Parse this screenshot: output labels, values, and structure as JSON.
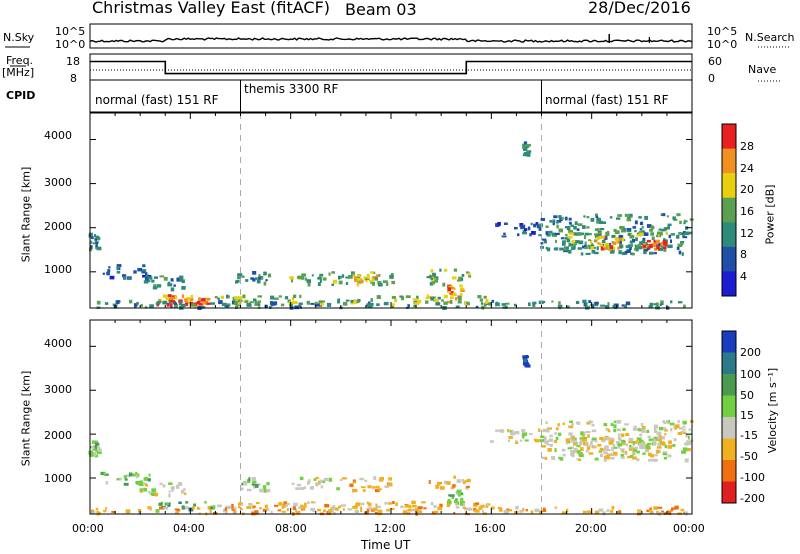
{
  "header": {
    "station": "Christmas Valley East (fitACF)",
    "beam": "Beam 03",
    "date": "28/Dec/2016"
  },
  "aux_panels": {
    "nsky_label": "N.Sky",
    "nsky_ticks": [
      "10^5",
      "10^0"
    ],
    "nsearch_label": "N.Search",
    "nsearch_ticks": [
      "10^5",
      "10^0"
    ],
    "freq_label": [
      "Freq.",
      "[MHz]"
    ],
    "freq_ticks": [
      "18",
      "8"
    ],
    "nave_label": "Nave",
    "nave_ticks": [
      "60",
      "0"
    ],
    "cpid_label": "CPID"
  },
  "cpid_modes": [
    {
      "label": "normal (fast) 151 RF",
      "start": 0,
      "end": 6
    },
    {
      "label": "themis 3300 RF",
      "start": 6,
      "end": 18
    },
    {
      "label": "normal (fast) 151 RF",
      "start": 18,
      "end": 24
    }
  ],
  "chart_data": [
    {
      "type": "line",
      "x": [
        0,
        3,
        3,
        15,
        15,
        24
      ],
      "series": [
        {
          "name": "Freq.",
          "values": [
            15.5,
            15.5,
            10,
            10,
            15.5,
            15.5
          ]
        },
        {
          "name": "N.Sky",
          "values": [
            3.0,
            3.1,
            3.4,
            3.5,
            3.3,
            3.0
          ]
        },
        {
          "name": "Nave",
          "values": [
            22,
            22,
            22,
            22,
            22,
            22
          ]
        }
      ],
      "xlim": [
        0,
        24
      ]
    },
    {
      "type": "heatmap",
      "xlabel": "",
      "ylabel": "Slant Range [km]",
      "yticks": [
        "1000",
        "2000",
        "3000",
        "4000"
      ],
      "ylim": [
        180,
        4600
      ],
      "xlim": [
        0,
        24
      ],
      "colorbar": {
        "label": "Power [dB]",
        "ticks": [
          "4",
          "8",
          "12",
          "16",
          "20",
          "24",
          "28"
        ],
        "colors": [
          "#1c1cd0",
          "#1f50a8",
          "#2e8a7a",
          "#5aa050",
          "#e8d010",
          "#f09020",
          "#e82020"
        ]
      },
      "patches": [
        {
          "t0": 0.0,
          "t1": 0.4,
          "r0": 1500,
          "r1": 1850,
          "level": 2
        },
        {
          "t0": 0.5,
          "t1": 2.5,
          "r0": 850,
          "r1": 1150,
          "level": 1
        },
        {
          "t0": 2.0,
          "t1": 3.8,
          "r0": 600,
          "r1": 900,
          "level": 2
        },
        {
          "t0": 5.8,
          "t1": 7.2,
          "r0": 700,
          "r1": 1000,
          "level": 2
        },
        {
          "t0": 8.0,
          "t1": 12.2,
          "r0": 700,
          "r1": 1000,
          "level": 3
        },
        {
          "t0": 10.5,
          "t1": 11.5,
          "r0": 780,
          "r1": 920,
          "level": 4
        },
        {
          "t0": 13.5,
          "t1": 15.2,
          "r0": 700,
          "r1": 1050,
          "level": 3
        },
        {
          "t0": 14.3,
          "t1": 14.9,
          "r0": 300,
          "r1": 700,
          "level": 5
        },
        {
          "t0": 2.5,
          "t1": 5.0,
          "r0": 200,
          "r1": 450,
          "level": 5
        },
        {
          "t0": 3.2,
          "t1": 4.8,
          "r0": 220,
          "r1": 380,
          "level": 6
        },
        {
          "t0": 0.0,
          "t1": 24.0,
          "r0": 180,
          "r1": 330,
          "level": 2
        },
        {
          "t0": 5.0,
          "t1": 16.0,
          "r0": 250,
          "r1": 450,
          "level": 3
        },
        {
          "t0": 16.0,
          "t1": 18.0,
          "r0": 1800,
          "r1": 2100,
          "level": 1
        },
        {
          "t0": 17.3,
          "t1": 17.5,
          "r0": 3650,
          "r1": 3950,
          "level": 2
        },
        {
          "t0": 18.0,
          "t1": 24.0,
          "r0": 1400,
          "r1": 2300,
          "level": 2
        },
        {
          "t0": 19.0,
          "t1": 23.0,
          "r0": 1500,
          "r1": 1900,
          "level": 3
        },
        {
          "t0": 20.0,
          "t1": 21.3,
          "r0": 1500,
          "r1": 1800,
          "level": 5
        },
        {
          "t0": 22.0,
          "t1": 23.0,
          "r0": 1500,
          "r1": 1700,
          "level": 6
        }
      ]
    },
    {
      "type": "heatmap",
      "xlabel": "Time UT",
      "ylabel": "Slant Range [km]",
      "xticks": [
        "00:00",
        "04:00",
        "08:00",
        "12:00",
        "16:00",
        "20:00",
        "00:00"
      ],
      "yticks": [
        "1000",
        "2000",
        "3000",
        "4000"
      ],
      "ylim": [
        180,
        4600
      ],
      "xlim": [
        0,
        24
      ],
      "colorbar": {
        "label": "Velocity [m s⁻¹]",
        "ticks": [
          "200",
          "100",
          "50",
          "15",
          "-15",
          "-50",
          "-100",
          "-200"
        ],
        "colors": [
          "#1c3cc0",
          "#2a7a8a",
          "#4a9a50",
          "#70d040",
          "#c8c8c0",
          "#f0b020",
          "#f07010",
          "#e02020"
        ]
      },
      "patches": [
        {
          "t0": 0.0,
          "t1": 0.4,
          "r0": 1500,
          "r1": 1850,
          "level": 3
        },
        {
          "t0": 0.5,
          "t1": 2.5,
          "r0": 850,
          "r1": 1150,
          "level": 3
        },
        {
          "t0": 2.0,
          "t1": 3.8,
          "r0": 600,
          "r1": 900,
          "level": 4
        },
        {
          "t0": 5.8,
          "t1": 7.2,
          "r0": 700,
          "r1": 1000,
          "level": 3
        },
        {
          "t0": 8.0,
          "t1": 10.0,
          "r0": 750,
          "r1": 1000,
          "level": 4
        },
        {
          "t0": 10.0,
          "t1": 12.2,
          "r0": 700,
          "r1": 1000,
          "level": 5
        },
        {
          "t0": 13.5,
          "t1": 15.2,
          "r0": 750,
          "r1": 1050,
          "level": 5
        },
        {
          "t0": 14.3,
          "t1": 14.9,
          "r0": 350,
          "r1": 700,
          "level": 3
        },
        {
          "t0": 2.5,
          "t1": 5.0,
          "r0": 250,
          "r1": 450,
          "level": 2
        },
        {
          "t0": 0.0,
          "t1": 24.0,
          "r0": 180,
          "r1": 330,
          "level": 5
        },
        {
          "t0": 5.0,
          "t1": 16.0,
          "r0": 250,
          "r1": 450,
          "level": 5
        },
        {
          "t0": 16.0,
          "t1": 18.0,
          "r0": 1800,
          "r1": 2100,
          "level": 4
        },
        {
          "t0": 17.3,
          "t1": 17.5,
          "r0": 3550,
          "r1": 3800,
          "level": 0
        },
        {
          "t0": 18.0,
          "t1": 24.0,
          "r0": 1400,
          "r1": 2300,
          "level": 4
        },
        {
          "t0": 19.0,
          "t1": 23.0,
          "r0": 1500,
          "r1": 1900,
          "level": 4
        }
      ]
    }
  ]
}
